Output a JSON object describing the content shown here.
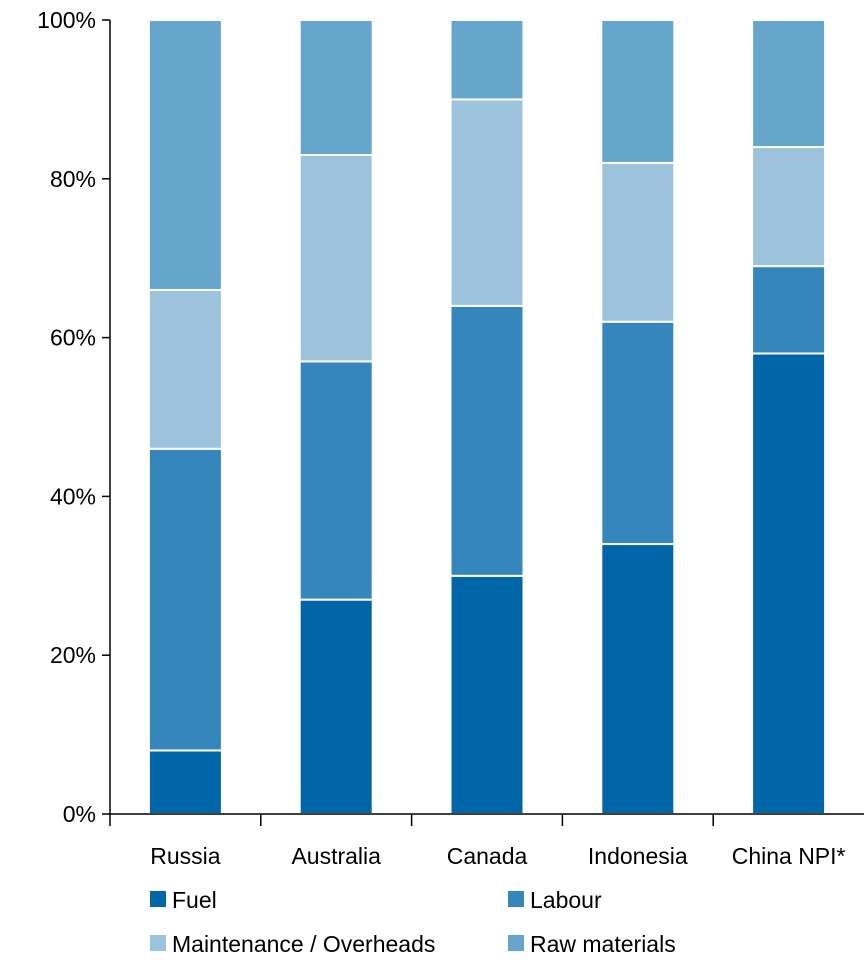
{
  "chart_data": {
    "type": "bar",
    "stacked": true,
    "categories": [
      "Russia",
      "Australia",
      "Canada",
      "Indonesia",
      "China NPI*"
    ],
    "series": [
      {
        "name": "Fuel",
        "values": [
          8,
          27,
          30,
          34,
          58
        ],
        "color": "#0066a8"
      },
      {
        "name": "Labour",
        "values": [
          38,
          30,
          34,
          28,
          11
        ],
        "color": "#3586bd"
      },
      {
        "name": "Maintenance / Overheads",
        "values": [
          20,
          26,
          26,
          20,
          15
        ],
        "color": "#9dc3dc"
      },
      {
        "name": "Raw materials",
        "values": [
          34,
          17,
          10,
          18,
          16
        ],
        "color": "#66a6cc"
      }
    ],
    "ylim": [
      0,
      100
    ],
    "yticks": [
      "0%",
      "20%",
      "40%",
      "60%",
      "80%",
      "100%"
    ],
    "xlabel": "",
    "ylabel": "",
    "grid": false,
    "legend_position": "bottom"
  }
}
